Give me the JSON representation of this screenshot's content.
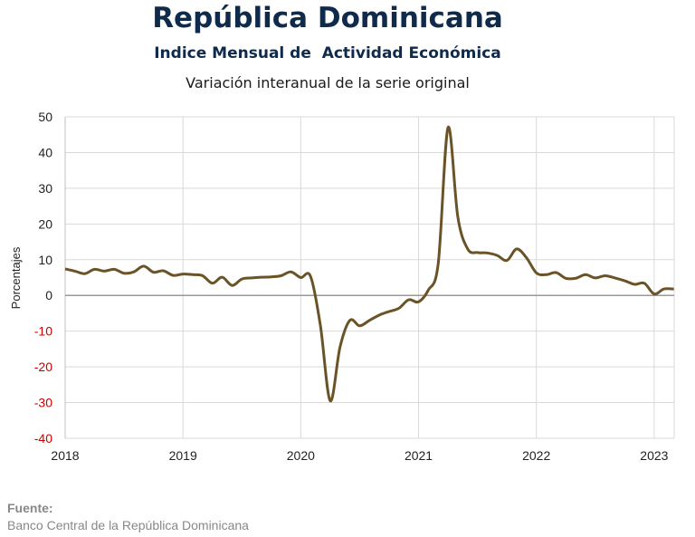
{
  "header": {
    "title": "República Dominicana",
    "subtitle": "Indice Mensual de  Actividad Económica",
    "description": "Variación interanual de la serie original"
  },
  "source": {
    "label": "Fuente:",
    "text": "Banco Central de la República Dominicana"
  },
  "colors": {
    "line": "#6b5328",
    "negative_tick": "#cc0000",
    "grid": "#d9d9d9",
    "zero_line": "#999999"
  },
  "chart_data": {
    "type": "line",
    "ylabel": "Porcentajes",
    "ylim": [
      -40,
      50
    ],
    "yticks": [
      50,
      40,
      30,
      20,
      10,
      0,
      -10,
      -20,
      -30,
      -40
    ],
    "ytick_labels": [
      "50",
      "40",
      "30",
      "20",
      "10",
      "0",
      "-10",
      "-20",
      "-30",
      "-40"
    ],
    "xlim": [
      2018,
      2023.17
    ],
    "xticks": [
      2018,
      2019,
      2020,
      2021,
      2022,
      2023
    ],
    "xtick_labels": [
      "2018",
      "2019",
      "2020",
      "2021",
      "2022",
      "2023"
    ],
    "grid": true,
    "series": [
      {
        "x": [
          2018.0,
          2018.083,
          2018.167,
          2018.25,
          2018.333,
          2018.417,
          2018.5,
          2018.583,
          2018.667,
          2018.75,
          2018.833,
          2018.917,
          2019.0,
          2019.083,
          2019.167,
          2019.25,
          2019.333,
          2019.417,
          2019.5,
          2019.583,
          2019.667,
          2019.75,
          2019.833,
          2019.917,
          2020.0,
          2020.083,
          2020.167,
          2020.25,
          2020.333,
          2020.417,
          2020.5,
          2020.583,
          2020.667,
          2020.75,
          2020.833,
          2020.917,
          2021.0,
          2021.083,
          2021.167,
          2021.25,
          2021.333,
          2021.417,
          2021.5,
          2021.583,
          2021.667,
          2021.75,
          2021.833,
          2021.917,
          2022.0,
          2022.083,
          2022.167,
          2022.25,
          2022.333,
          2022.417,
          2022.5,
          2022.583,
          2022.667,
          2022.75,
          2022.833,
          2022.917,
          2023.0,
          2023.083,
          2023.167
        ],
        "values": [
          7.4,
          6.8,
          6.1,
          7.3,
          6.8,
          7.3,
          6.2,
          6.6,
          8.2,
          6.5,
          6.9,
          5.6,
          6.0,
          5.8,
          5.5,
          3.4,
          5.1,
          2.8,
          4.6,
          4.9,
          5.1,
          5.2,
          5.5,
          6.6,
          5.0,
          5.3,
          -8.5,
          -29.5,
          -14.5,
          -7.0,
          -8.5,
          -7.0,
          -5.5,
          -4.5,
          -3.6,
          -1.2,
          -1.8,
          1.5,
          9.0,
          47.0,
          22.0,
          13.0,
          12.0,
          11.9,
          11.2,
          9.8,
          13.0,
          10.5,
          6.3,
          5.8,
          6.4,
          4.8,
          4.8,
          5.8,
          4.9,
          5.5,
          4.9,
          4.1,
          3.1,
          3.4,
          0.4,
          1.8,
          1.8
        ]
      }
    ]
  }
}
